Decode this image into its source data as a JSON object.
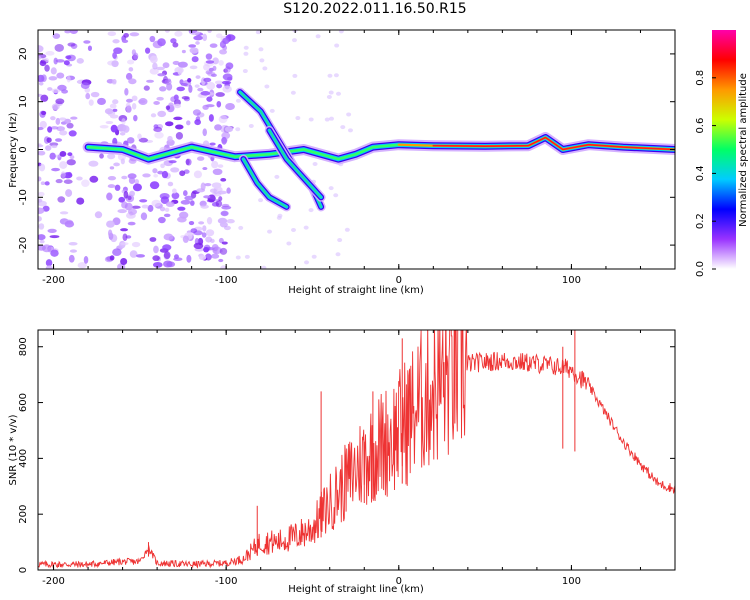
{
  "title": "S120.2022.011.16.50.R15",
  "chart_data": [
    {
      "type": "heatmap",
      "xlabel": "Height of straight line (km)",
      "ylabel": "Frequency (Hz)",
      "xlim": [
        -209,
        160
      ],
      "ylim": [
        -25,
        25
      ],
      "xticks": [
        -200,
        -100,
        0,
        100
      ],
      "yticks": [
        -20,
        -10,
        0,
        10,
        20
      ],
      "colorbar": {
        "label": "Normalized spectral amplitude",
        "range": [
          0,
          1
        ],
        "ticks": [
          "0.0",
          "0.2",
          "0.4",
          "0.6",
          "0.8"
        ],
        "colormap": [
          "#ffffff",
          "#9933ff",
          "#0000ff",
          "#00ccff",
          "#00ff66",
          "#ccff00",
          "#ff9900",
          "#ff0000",
          "#ff00aa"
        ]
      },
      "features": [
        {
          "name": "noise region",
          "x_range": [
            -209,
            -97
          ],
          "y_range": [
            -25,
            25
          ]
        },
        {
          "name": "main trace",
          "points": [
            [
              -180,
              0.5
            ],
            [
              -160,
              0
            ],
            [
              -145,
              -2
            ],
            [
              -120,
              0.5
            ],
            [
              -95,
              -1.5
            ],
            [
              -75,
              -1
            ],
            [
              -55,
              0
            ],
            [
              -35,
              -2
            ],
            [
              -25,
              -1
            ],
            [
              -15,
              0.5
            ],
            [
              0,
              1
            ],
            [
              20,
              0.8
            ],
            [
              50,
              0.7
            ],
            [
              75,
              0.8
            ],
            [
              85,
              2.5
            ],
            [
              95,
              0
            ],
            [
              110,
              1
            ],
            [
              130,
              0.5
            ],
            [
              160,
              0
            ]
          ]
        },
        {
          "name": "falling trace 1",
          "points": [
            [
              -92,
              12
            ],
            [
              -80,
              8
            ],
            [
              -70,
              2
            ],
            [
              -60,
              -4
            ],
            [
              -50,
              -8
            ],
            [
              -45,
              -12
            ]
          ]
        },
        {
          "name": "falling trace 2",
          "points": [
            [
              -90,
              -2
            ],
            [
              -82,
              -7
            ],
            [
              -75,
              -10
            ],
            [
              -65,
              -12
            ]
          ]
        },
        {
          "name": "falling trace 3",
          "points": [
            [
              -75,
              4
            ],
            [
              -65,
              -2
            ],
            [
              -55,
              -6
            ],
            [
              -45,
              -10
            ]
          ]
        }
      ]
    },
    {
      "type": "line",
      "xlabel": "Height of straight line (km)",
      "ylabel": "SNR (10 * v/v)",
      "xlim": [
        -209,
        160
      ],
      "ylim": [
        0,
        860
      ],
      "xticks": [
        -200,
        -100,
        0,
        100
      ],
      "yticks": [
        0,
        200,
        400,
        600,
        800
      ],
      "line_color": "#ee3333",
      "x": [
        -209,
        -180,
        -160,
        -150,
        -145,
        -140,
        -120,
        -100,
        -90,
        -80,
        -70,
        -60,
        -50,
        -40,
        -30,
        -20,
        -10,
        0,
        10,
        20,
        30,
        40,
        60,
        80,
        90,
        100,
        110,
        120,
        130,
        140,
        150,
        160
      ],
      "y": [
        20,
        20,
        30,
        30,
        80,
        25,
        20,
        25,
        40,
        100,
        100,
        120,
        150,
        240,
        320,
        400,
        450,
        500,
        580,
        650,
        700,
        740,
        750,
        740,
        730,
        720,
        660,
        560,
        460,
        380,
        310,
        290
      ],
      "spikes": [
        [
          -145,
          100
        ],
        [
          -82,
          230
        ],
        [
          -45,
          640
        ],
        [
          -20,
          460
        ],
        [
          -15,
          640
        ],
        [
          2,
          830
        ],
        [
          102,
          860
        ],
        [
          95,
          800
        ]
      ]
    }
  ]
}
